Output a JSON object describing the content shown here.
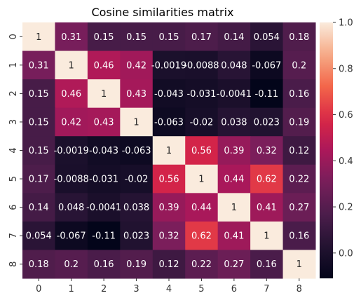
{
  "chart_data": {
    "type": "heatmap",
    "title": "Cosine similarities matrix",
    "xlabel": "",
    "ylabel": "",
    "x_labels": [
      "0",
      "1",
      "2",
      "3",
      "4",
      "5",
      "6",
      "7",
      "8"
    ],
    "y_labels": [
      "0",
      "1",
      "2",
      "3",
      "4",
      "5",
      "6",
      "7",
      "8"
    ],
    "cell_labels": [
      [
        "1",
        "0.31",
        "0.15",
        "0.15",
        "0.15",
        "0.17",
        "0.14",
        "0.054",
        "0.18"
      ],
      [
        "0.31",
        "1",
        "0.46",
        "0.42",
        "-0.0019",
        "-0.0088",
        "0.048",
        "-0.067",
        "0.2"
      ],
      [
        "0.15",
        "0.46",
        "1",
        "0.43",
        "-0.043",
        "-0.031",
        "-0.0041",
        "-0.11",
        "0.16"
      ],
      [
        "0.15",
        "0.42",
        "0.43",
        "1",
        "-0.063",
        "-0.02",
        "0.038",
        "0.023",
        "0.19"
      ],
      [
        "0.15",
        "-0.0019",
        "-0.043",
        "-0.063",
        "1",
        "0.56",
        "0.39",
        "0.32",
        "0.12"
      ],
      [
        "0.17",
        "-0.0088",
        "-0.031",
        "-0.02",
        "0.56",
        "1",
        "0.44",
        "0.62",
        "0.22"
      ],
      [
        "0.14",
        "0.048",
        "-0.0041",
        "0.038",
        "0.39",
        "0.44",
        "1",
        "0.41",
        "0.27"
      ],
      [
        "0.054",
        "-0.067",
        "-0.11",
        "0.023",
        "0.32",
        "0.62",
        "0.41",
        "1",
        "0.16"
      ],
      [
        "0.18",
        "0.2",
        "0.16",
        "0.19",
        "0.12",
        "0.22",
        "0.27",
        "0.16",
        "1"
      ]
    ],
    "colorbar": {
      "vmin": -0.11,
      "vmax": 1.0,
      "ticks": [
        -0.0,
        0.2,
        0.4,
        0.6,
        0.8,
        1.0
      ],
      "tick_labels": [
        "0.0",
        "0.2",
        "0.4",
        "0.6",
        "0.8",
        "1.0"
      ]
    },
    "colormap": "rocket",
    "grid": false,
    "legend": "colorbar-right"
  }
}
